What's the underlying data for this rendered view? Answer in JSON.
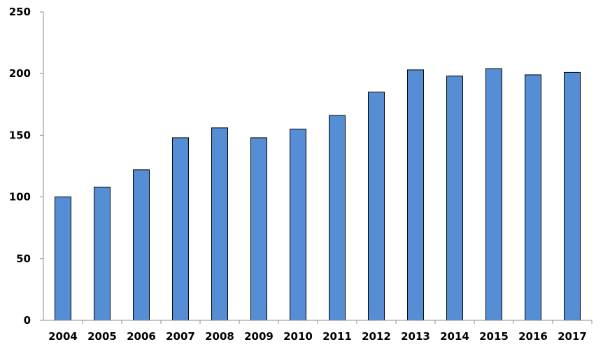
{
  "chart_data": {
    "type": "bar",
    "title": "",
    "xlabel": "",
    "ylabel": "",
    "categories": [
      "2004",
      "2005",
      "2006",
      "2007",
      "2008",
      "2009",
      "2010",
      "2011",
      "2012",
      "2013",
      "2014",
      "2015",
      "2016",
      "2017"
    ],
    "values": [
      100,
      108,
      122,
      148,
      156,
      148,
      155,
      166,
      185,
      203,
      198,
      204,
      199,
      201
    ],
    "ylim": [
      0,
      250
    ],
    "yticks": [
      "0",
      "50",
      "100",
      "150",
      "200",
      "250"
    ],
    "grid": false,
    "legend": "none",
    "bar_color": "#558ed5",
    "bar_edge_color": "#000000",
    "axis_color": "#8c8c8c"
  }
}
